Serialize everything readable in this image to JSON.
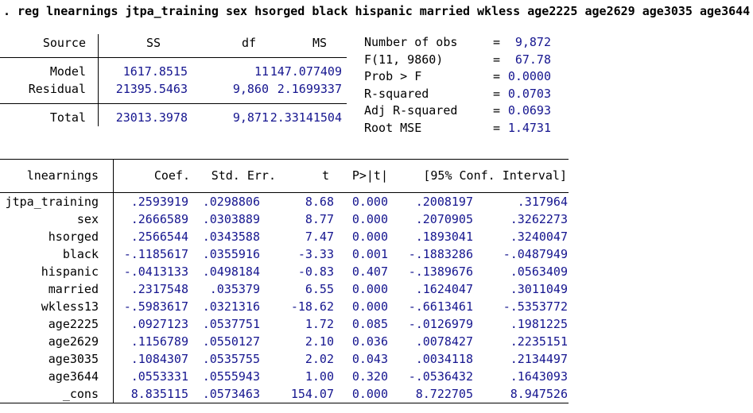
{
  "command": {
    "line": ". reg lnearnings jtpa_training sex hsorged black hispanic married wkless age2225 age2629 age3035 age3644"
  },
  "colors": {
    "result_value_navy": "#15158F",
    "label_black": "#000000",
    "background": "#FFFFFF"
  },
  "anova": {
    "headers": {
      "source": "Source",
      "ss": "SS",
      "df": "df",
      "ms": "MS"
    },
    "rows": [
      {
        "source": "Model",
        "ss": "1617.8515",
        "df": "11",
        "ms": "147.077409"
      },
      {
        "source": "Residual",
        "ss": "21395.5463",
        "df": "9,860",
        "ms": "2.1699337"
      },
      {
        "source": "Total",
        "ss": "23013.3978",
        "df": "9,871",
        "ms": "2.33141504"
      }
    ]
  },
  "model_stats": [
    {
      "label": "Number of obs",
      "eq": "=",
      "value": "9,872"
    },
    {
      "label": "F(11, 9860)",
      "eq": "=",
      "value": "67.78"
    },
    {
      "label": "Prob > F",
      "eq": "=",
      "value": "0.0000"
    },
    {
      "label": "R-squared",
      "eq": "=",
      "value": "0.0703"
    },
    {
      "label": "Adj R-squared",
      "eq": "=",
      "value": "0.0693"
    },
    {
      "label": "Root MSE",
      "eq": "=",
      "value": "1.4731"
    }
  ],
  "coef_table": {
    "depvar": "lnearnings",
    "headers": {
      "coef": "Coef.",
      "stderr": "Std. Err.",
      "t": "t",
      "p": "P>|t|",
      "ci": "[95% Conf. Interval]"
    },
    "rows": [
      {
        "var": "jtpa_training",
        "coef": ".2593919",
        "stderr": ".0298806",
        "t": "8.68",
        "p": "0.000",
        "ci_lo": ".2008197",
        "ci_hi": ".317964"
      },
      {
        "var": "sex",
        "coef": ".2666589",
        "stderr": ".0303889",
        "t": "8.77",
        "p": "0.000",
        "ci_lo": ".2070905",
        "ci_hi": ".3262273"
      },
      {
        "var": "hsorged",
        "coef": ".2566544",
        "stderr": ".0343588",
        "t": "7.47",
        "p": "0.000",
        "ci_lo": ".1893041",
        "ci_hi": ".3240047"
      },
      {
        "var": "black",
        "coef": "-.1185617",
        "stderr": ".0355916",
        "t": "-3.33",
        "p": "0.001",
        "ci_lo": "-.1883286",
        "ci_hi": "-.0487949"
      },
      {
        "var": "hispanic",
        "coef": "-.0413133",
        "stderr": ".0498184",
        "t": "-0.83",
        "p": "0.407",
        "ci_lo": "-.1389676",
        "ci_hi": ".0563409"
      },
      {
        "var": "married",
        "coef": ".2317548",
        "stderr": ".035379",
        "t": "6.55",
        "p": "0.000",
        "ci_lo": ".1624047",
        "ci_hi": ".3011049"
      },
      {
        "var": "wkless13",
        "coef": "-.5983617",
        "stderr": ".0321316",
        "t": "-18.62",
        "p": "0.000",
        "ci_lo": "-.6613461",
        "ci_hi": "-.5353772"
      },
      {
        "var": "age2225",
        "coef": ".0927123",
        "stderr": ".0537751",
        "t": "1.72",
        "p": "0.085",
        "ci_lo": "-.0126979",
        "ci_hi": ".1981225"
      },
      {
        "var": "age2629",
        "coef": ".1156789",
        "stderr": ".0550127",
        "t": "2.10",
        "p": "0.036",
        "ci_lo": ".0078427",
        "ci_hi": ".2235151"
      },
      {
        "var": "age3035",
        "coef": ".1084307",
        "stderr": ".0535755",
        "t": "2.02",
        "p": "0.043",
        "ci_lo": ".0034118",
        "ci_hi": ".2134497"
      },
      {
        "var": "age3644",
        "coef": ".0553331",
        "stderr": ".0555943",
        "t": "1.00",
        "p": "0.320",
        "ci_lo": "-.0536432",
        "ci_hi": ".1643093"
      },
      {
        "var": "_cons",
        "coef": "8.835115",
        "stderr": ".0573463",
        "t": "154.07",
        "p": "0.000",
        "ci_lo": "8.722705",
        "ci_hi": "8.947526"
      }
    ]
  }
}
